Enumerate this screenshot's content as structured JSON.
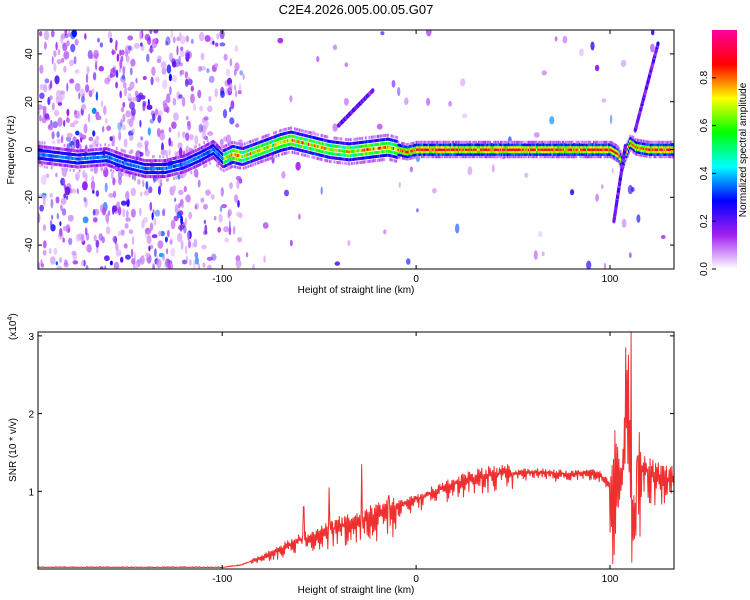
{
  "title": "C2E4.2026.005.00.05.G07",
  "chart_data": [
    {
      "type": "heatmap",
      "name": "spectrogram",
      "xlabel": "Height of straight line (km)",
      "ylabel": "Frequency (Hz)",
      "xlim": [
        -195,
        133
      ],
      "ylim": [
        -50,
        50
      ],
      "xticks": [
        -100,
        0,
        100
      ],
      "xtick_labels": [
        "-100",
        "0",
        "100"
      ],
      "yticks": [
        -40,
        -20,
        0,
        20,
        40
      ],
      "ytick_labels": [
        "-40",
        "-20",
        "0",
        "20",
        "40"
      ],
      "ridge": {
        "x": [
          -195,
          -185,
          -175,
          -160,
          -150,
          -140,
          -130,
          -120,
          -112,
          -105,
          -100,
          -95,
          -90,
          -80,
          -70,
          -65,
          -55,
          -45,
          -35,
          -25,
          -15,
          -5,
          0,
          20,
          40,
          60,
          80,
          100,
          104,
          106,
          108,
          110,
          113,
          120,
          133
        ],
        "y": [
          -2,
          -3,
          -4,
          -3,
          -6,
          -8,
          -8,
          -6,
          -3,
          0,
          -4,
          -2,
          -3,
          0,
          3,
          4,
          2,
          0,
          -1,
          0,
          1,
          -1,
          0,
          0,
          0,
          0,
          0,
          0,
          -2,
          -6,
          -1,
          3,
          1,
          0,
          0
        ]
      },
      "branch_lines": [
        {
          "x": [
            -40,
            -22
          ],
          "y": [
            10,
            25
          ]
        },
        {
          "x": [
            113,
            125
          ],
          "y": [
            8,
            45
          ]
        },
        {
          "x": [
            102,
            108
          ],
          "y": [
            -30,
            2
          ]
        }
      ],
      "colorbar": {
        "label": "Normalized spectral amplitude",
        "range": [
          0,
          1
        ],
        "ticks": [
          0.0,
          0.2,
          0.4,
          0.6,
          0.8
        ],
        "tick_labels": [
          "0.0",
          "0.2",
          "0.4",
          "0.6",
          "0.8"
        ],
        "stops": [
          "#ffffff",
          "#a020f0",
          "#0000ff",
          "#00ffff",
          "#00ff00",
          "#ffff00",
          "#ff0000",
          "#ff00a0"
        ]
      }
    },
    {
      "type": "line",
      "name": "snr",
      "xlabel": "Height of straight line (km)",
      "ylabel": "SNR (10 * v/v)",
      "y_scale_label": "(x10",
      "y_scale_exp": "4",
      "y_scale_close": ")",
      "xlim": [
        -195,
        133
      ],
      "ylim": [
        0,
        3.05
      ],
      "xticks": [
        -100,
        0,
        100
      ],
      "xtick_labels": [
        "-100",
        "0",
        "100"
      ],
      "yticks": [
        1,
        2,
        3
      ],
      "ytick_labels": [
        "1",
        "2",
        "3"
      ],
      "color": "#ee3030",
      "envelope": {
        "x": [
          -195,
          -150,
          -100,
          -90,
          -80,
          -70,
          -60,
          -50,
          -40,
          -30,
          -20,
          -10,
          0,
          10,
          20,
          30,
          40,
          60,
          80,
          90,
          95,
          100,
          102,
          104,
          106,
          108,
          110,
          112,
          115,
          120,
          125,
          133
        ],
        "y": [
          0.02,
          0.02,
          0.02,
          0.05,
          0.15,
          0.25,
          0.38,
          0.45,
          0.55,
          0.6,
          0.7,
          0.82,
          0.9,
          1.0,
          1.1,
          1.18,
          1.22,
          1.25,
          1.22,
          1.25,
          1.2,
          1.1,
          1.3,
          1.4,
          1.0,
          1.8,
          2.0,
          0.6,
          1.3,
          1.25,
          1.2,
          1.15
        ]
      },
      "spikes": [
        {
          "x": -58,
          "y": 0.8
        },
        {
          "x": -45,
          "y": 1.05
        },
        {
          "x": -28,
          "y": 1.35
        },
        {
          "x": -14,
          "y": 0.95
        },
        {
          "x": 108,
          "y": 2.85
        },
        {
          "x": 111,
          "y": 3.05
        },
        {
          "x": 114,
          "y": 1.45
        }
      ]
    }
  ]
}
